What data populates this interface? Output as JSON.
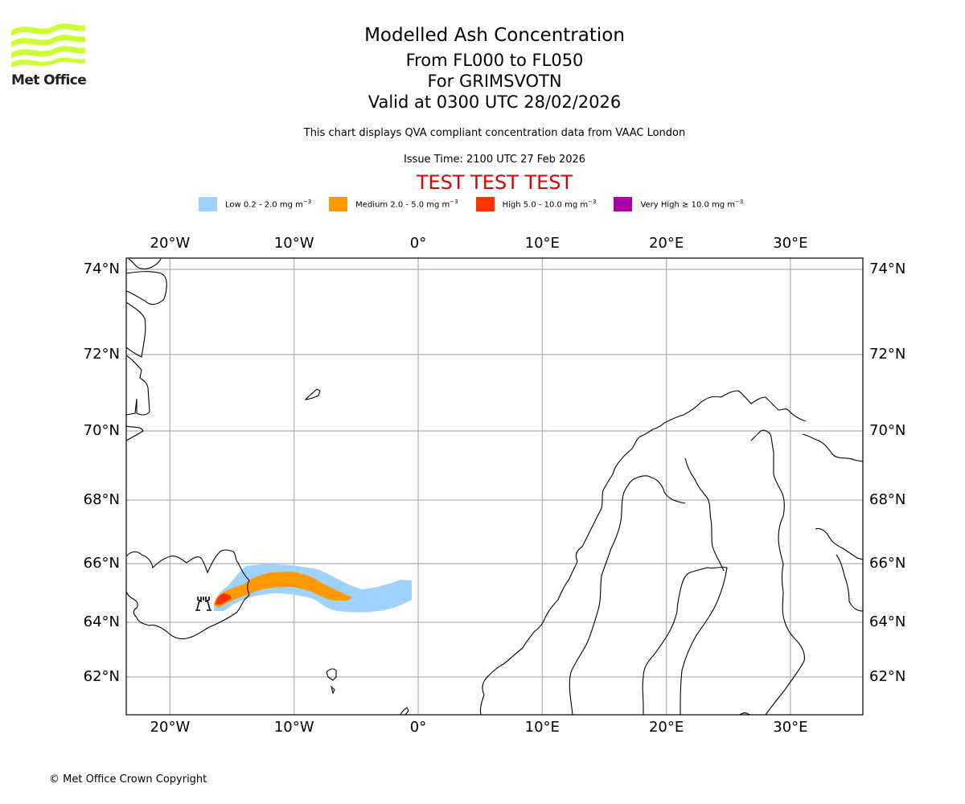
{
  "logo": {
    "text": "Met Office",
    "color": "#ccff33"
  },
  "header": {
    "title": "Modelled Ash Concentration",
    "level_range": "From FL000 to FL050",
    "volcano": "For GRIMSVOTN",
    "valid_time": "Valid at 0300 UTC 28/02/2026",
    "description": "This chart displays QVA compliant concentration data from VAAC London",
    "issue_time": "Issue Time: 2100 UTC 27 Feb 2026",
    "test_banner": "TEST TEST TEST"
  },
  "legend": [
    {
      "label": "Low 0.2 - 2.0 mg m",
      "exponent": "−3",
      "color": "#a0d2ff"
    },
    {
      "label": "Medium 2.0 - 5.0 mg m",
      "exponent": "−3",
      "color": "#ff9900"
    },
    {
      "label": "High 5.0 - 10.0 mg m",
      "exponent": "−3",
      "color": "#ff3300"
    },
    {
      "label": "Very High ≥ 10.0 mg m",
      "exponent": "−3",
      "color": "#aa00aa"
    }
  ],
  "map": {
    "projection": "regional North Atlantic / Scandinavia",
    "lon_range": [
      -23.5,
      35.5
    ],
    "lat_range": [
      60.9,
      74.3
    ],
    "lon_ticks": [
      {
        "value": -20,
        "label": "20°W"
      },
      {
        "value": -10,
        "label": "10°W"
      },
      {
        "value": 0,
        "label": "0°"
      },
      {
        "value": 10,
        "label": "10°E"
      },
      {
        "value": 20,
        "label": "20°E"
      },
      {
        "value": 30,
        "label": "30°E"
      }
    ],
    "lat_ticks": [
      {
        "value": 74,
        "label": "74°N"
      },
      {
        "value": 72,
        "label": "72°N"
      },
      {
        "value": 70,
        "label": "70°N"
      },
      {
        "value": 68,
        "label": "68°N"
      },
      {
        "value": 66,
        "label": "66°N"
      },
      {
        "value": 64,
        "label": "64°N"
      },
      {
        "value": 62,
        "label": "62°N"
      }
    ],
    "gridline_color": "#b0b0b0",
    "volcano_marker": {
      "name": "Grimsvotn",
      "lon": -17.3,
      "lat": 64.4,
      "icon": "volcano-icon"
    },
    "ash_plume": {
      "low_extent": {
        "lon": [
          -16.5,
          -0.5
        ],
        "lat": [
          64.2,
          66.0
        ]
      },
      "medium_extent": {
        "lon": [
          -16.3,
          -5.3
        ],
        "lat": [
          64.6,
          65.7
        ]
      },
      "high_extent": {
        "lon": [
          -16.3,
          -14.9
        ],
        "lat": [
          64.5,
          64.9
        ]
      },
      "very_high_present": false
    }
  },
  "footer": {
    "copyright": "© Met Office Crown Copyright"
  }
}
